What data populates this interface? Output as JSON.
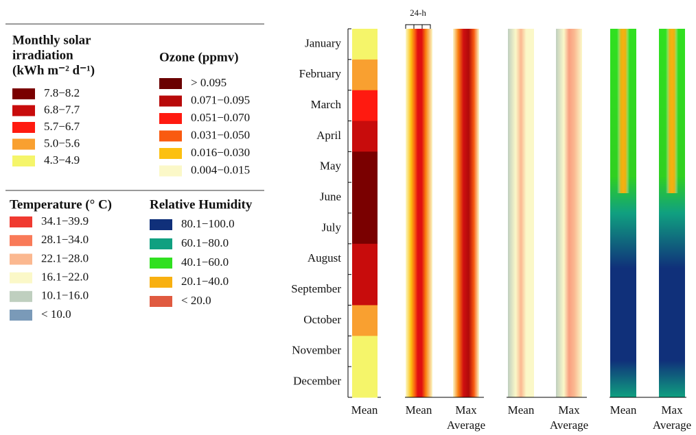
{
  "legends": [
    {
      "title": [
        "Monthly solar",
        "irradiation",
        "(kWh m⁻² d⁻¹)"
      ],
      "items": [
        {
          "label": "7.8−8.2",
          "color": "#7a0000"
        },
        {
          "label": "6.8−7.7",
          "color": "#c80c0c"
        },
        {
          "label": "5.7−6.7",
          "color": "#ff1a10"
        },
        {
          "label": "5.0−5.6",
          "color": "#f9a030"
        },
        {
          "label": "4.3−4.9",
          "color": "#f5f56a"
        }
      ]
    },
    {
      "title": [
        "Ozone (ppmv)"
      ],
      "items": [
        {
          "label": "> 0.095",
          "color": "#6a0000"
        },
        {
          "label": "0.071−0.095",
          "color": "#b80a0a"
        },
        {
          "label": "0.051−0.070",
          "color": "#ff1a10"
        },
        {
          "label": "0.031−0.050",
          "color": "#f95a10"
        },
        {
          "label": "0.016−0.030",
          "color": "#fcc010"
        },
        {
          "label": "0.004−0.015",
          "color": "#fbf8c8"
        }
      ]
    },
    {
      "title": [
        "Temperature (° C)"
      ],
      "items": [
        {
          "label": "34.1−39.9",
          "color": "#f03a30"
        },
        {
          "label": "28.1−34.0",
          "color": "#f97a58"
        },
        {
          "label": "22.1−28.0",
          "color": "#fbb890"
        },
        {
          "label": "16.1−22.0",
          "color": "#fbf8c8"
        },
        {
          "label": "10.1−16.0",
          "color": "#bfcfbf"
        },
        {
          "label": "< 10.0",
          "color": "#7a9ab8"
        }
      ]
    },
    {
      "title": [
        "Relative Humidity"
      ],
      "items": [
        {
          "label": "80.1−100.0",
          "color": "#10307a"
        },
        {
          "label": "60.1−80.0",
          "color": "#10a080"
        },
        {
          "label": "40.1−60.0",
          "color": "#30e020"
        },
        {
          "label": "20.1−40.0",
          "color": "#f8b010"
        },
        {
          "label": "< 20.0",
          "color": "#e05a40"
        }
      ]
    }
  ],
  "months": [
    "January",
    "February",
    "March",
    "April",
    "May",
    "June",
    "July",
    "August",
    "September",
    "October",
    "November",
    "December"
  ],
  "bracket_label": "24-h",
  "column_labels": [
    [
      "Mean"
    ],
    [
      "Mean"
    ],
    [
      "Max",
      "Average"
    ],
    [
      "Mean"
    ],
    [
      "Max",
      "Average"
    ],
    [
      "Mean"
    ],
    [
      "Max",
      "Average"
    ]
  ]
}
